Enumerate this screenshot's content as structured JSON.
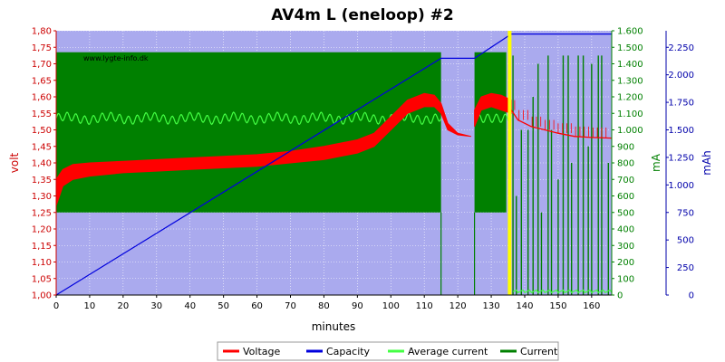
{
  "chart_data": {
    "type": "line",
    "title": "AV4m L (eneloop) #2",
    "watermark": "www.lygte-info.dk",
    "xlabel": "minutes",
    "ylabel_left": "volt",
    "ylabel_right1": "mA",
    "ylabel_right2": "mAh",
    "xlim": [
      0,
      166
    ],
    "ylim_left": [
      1.0,
      1.8
    ],
    "ylim_right1": [
      0,
      1600
    ],
    "ylim_right2": [
      0,
      2400
    ],
    "x_ticks": [
      "0",
      "10",
      "20",
      "30",
      "40",
      "50",
      "60",
      "70",
      "80",
      "90",
      "100",
      "110",
      "120",
      "130",
      "140",
      "150",
      "160"
    ],
    "y_left_ticks": [
      "1,00",
      "1,05",
      "1,10",
      "1,15",
      "1,20",
      "1,25",
      "1,30",
      "1,35",
      "1,40",
      "1,45",
      "1,50",
      "1,55",
      "1,60",
      "1,65",
      "1,70",
      "1,75",
      "1,80"
    ],
    "y_right1_ticks": [
      "0",
      "100",
      "200",
      "300",
      "400",
      "500",
      "600",
      "700",
      "800",
      "900",
      "1.000",
      "1.100",
      "1.200",
      "1.300",
      "1.400",
      "1.500",
      "1.600"
    ],
    "y_right2_ticks": [
      "0",
      "250",
      "500",
      "750",
      "1.000",
      "1.250",
      "1.500",
      "1.750",
      "2.000",
      "2.250"
    ],
    "colors": {
      "plot_bg": "#aaaaee",
      "grid": "#ffffff",
      "voltage": "#ff0000",
      "capacity": "#0000dd",
      "average_current": "#44ff44",
      "current": "#008000",
      "marker": "#ffff00",
      "left_axis": "#cc0000",
      "right1_axis": "#008000",
      "right2_axis": "#0000aa"
    },
    "series": [
      {
        "name": "Voltage",
        "key": "voltage",
        "x": [
          0,
          2,
          5,
          10,
          20,
          30,
          40,
          50,
          60,
          70,
          80,
          90,
          95,
          100,
          105,
          110,
          113,
          115,
          117,
          120,
          124
        ],
        "low": [
          1.27,
          1.33,
          1.35,
          1.36,
          1.37,
          1.375,
          1.38,
          1.385,
          1.39,
          1.4,
          1.41,
          1.43,
          1.45,
          1.5,
          1.55,
          1.57,
          1.57,
          1.55,
          1.5,
          1.485,
          1.48
        ],
        "high": [
          1.35,
          1.38,
          1.395,
          1.4,
          1.405,
          1.41,
          1.415,
          1.42,
          1.425,
          1.435,
          1.45,
          1.47,
          1.49,
          1.54,
          1.59,
          1.61,
          1.605,
          1.58,
          1.52,
          1.49,
          1.48
        ]
      },
      {
        "name": "Voltage",
        "key": "voltage2",
        "x": [
          125,
          127,
          130,
          133,
          136
        ],
        "low": [
          1.51,
          1.56,
          1.57,
          1.56,
          1.55
        ],
        "high": [
          1.56,
          1.6,
          1.61,
          1.605,
          1.59
        ]
      },
      {
        "name": "Voltage",
        "key": "voltage3",
        "x": [
          136,
          138,
          142,
          146,
          150,
          155,
          160,
          166
        ],
        "y": [
          1.56,
          1.53,
          1.51,
          1.5,
          1.49,
          1.48,
          1.477,
          1.475
        ]
      },
      {
        "name": "Capacity",
        "key": "capacity",
        "x": [
          0,
          115,
          125,
          136,
          166
        ],
        "y": [
          0,
          2150,
          2150,
          2370,
          2370
        ]
      },
      {
        "name": "Average current",
        "key": "average_current",
        "x": [
          0,
          115,
          116,
          125,
          126,
          136
        ],
        "y": [
          1070,
          1070,
          0,
          0,
          1070,
          1070
        ]
      },
      {
        "name": "Current",
        "key": "current",
        "blocks": [
          [
            0,
            115,
            1470
          ],
          [
            125,
            134.5,
            1470
          ]
        ],
        "baseline": 500,
        "spikes_x": [
          136.5,
          137.5,
          139,
          141,
          142.5,
          144,
          145,
          147,
          148,
          150,
          151.5,
          153,
          154,
          156,
          157.5,
          159,
          160,
          162,
          163,
          165
        ],
        "spikes_y": [
          1450,
          600,
          1000,
          1000,
          1200,
          1400,
          500,
          1450,
          1000,
          700,
          1450,
          1450,
          800,
          1450,
          1450,
          900,
          1400,
          1450,
          1450,
          800
        ]
      }
    ],
    "marker_x": 135.5,
    "legend": [
      "Voltage",
      "Capacity",
      "Average current",
      "Current"
    ],
    "legend_position": "bottom-center",
    "grid": true
  }
}
